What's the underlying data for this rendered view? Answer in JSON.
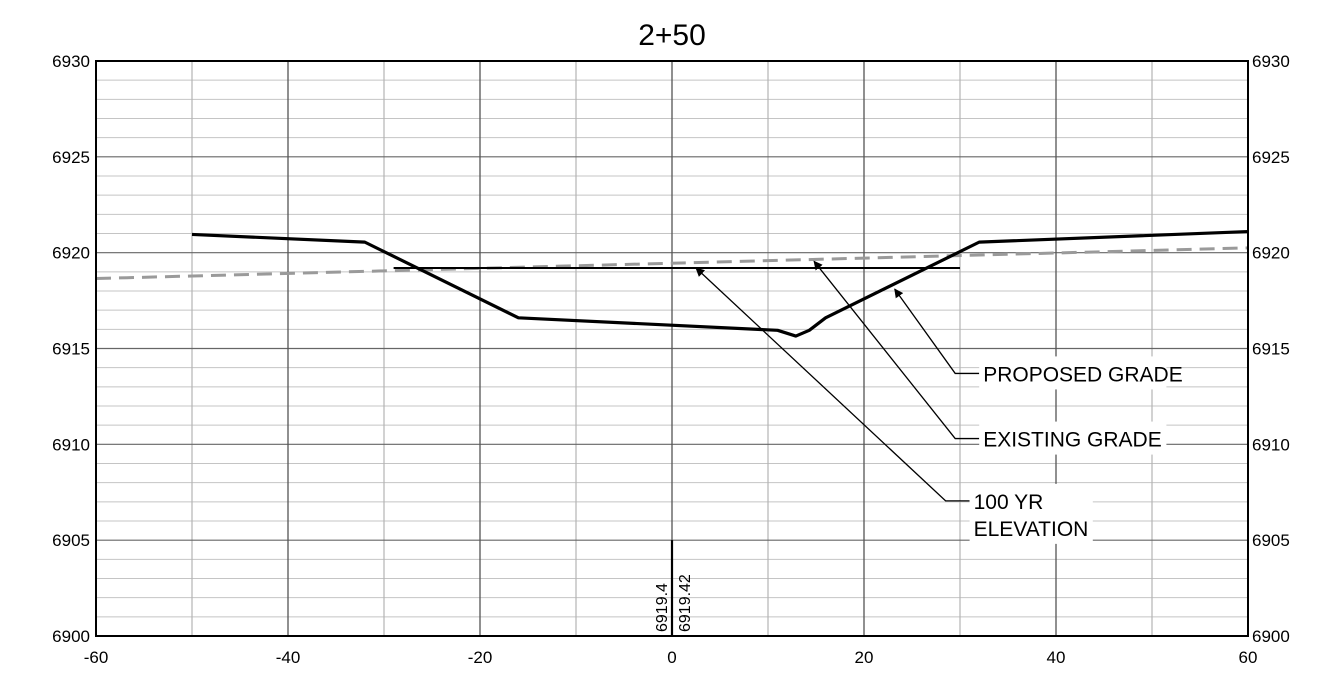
{
  "chart_data": {
    "type": "line",
    "title": "2+50",
    "xlabel": "",
    "ylabel": "",
    "xlim": [
      -60,
      60
    ],
    "ylim": [
      6900,
      6930
    ],
    "x_ticks": [
      "-60",
      "-40",
      "-20",
      "0",
      "20",
      "40",
      "60"
    ],
    "y_ticks": [
      "6900",
      "6905",
      "6910",
      "6915",
      "6920",
      "6925",
      "6930"
    ],
    "grid": "on",
    "series": [
      {
        "name": "PROPOSED GRADE",
        "style": "solid-thick",
        "color": "#000000",
        "x": [
          -50,
          -32,
          -16,
          11,
          12.9,
          14.3,
          16,
          32,
          60
        ],
        "y": [
          6920.95,
          6920.55,
          6916.6,
          6915.95,
          6915.65,
          6915.95,
          6916.6,
          6920.55,
          6921.1
        ]
      },
      {
        "name": "EXISTING GRADE",
        "style": "dashed",
        "color": "#9a9a9a",
        "x": [
          -60,
          60
        ],
        "y": [
          6918.65,
          6920.25
        ]
      },
      {
        "name": "100 YR ELEVATION",
        "style": "solid-thin",
        "color": "#000000",
        "x": [
          -29,
          30
        ],
        "y": [
          6919.2,
          6919.2
        ]
      }
    ],
    "annotations": {
      "callouts": [
        {
          "lines": [
            "PROPOSED GRADE"
          ],
          "target_x": 23.2,
          "target_y": 6918.1,
          "label_x": 29.5,
          "label_y": 6913.7
        },
        {
          "lines": [
            "EXISTING GRADE"
          ],
          "target_x": 14.8,
          "target_y": 6919.55,
          "label_x": 29.5,
          "label_y": 6910.3
        },
        {
          "lines": [
            "100 YR",
            "ELEVATION"
          ],
          "target_x": 2.5,
          "target_y": 6919.2,
          "label_x": 28.5,
          "label_y": 6907.05
        }
      ],
      "station_marker": {
        "x": 0,
        "left_label": "6919.4",
        "right_label": "6919.42"
      }
    }
  }
}
